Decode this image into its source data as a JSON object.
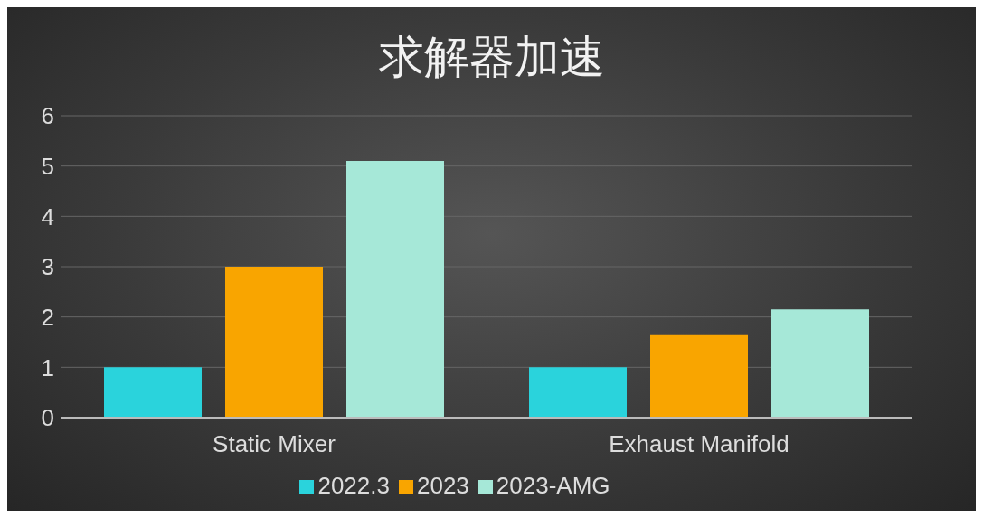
{
  "chart_data": {
    "type": "bar",
    "title": "求解器加速",
    "categories": [
      "Static Mixer",
      "Exhaust Manifold"
    ],
    "series": [
      {
        "name": "2022.3",
        "color": "#2ad3dc",
        "values": [
          1,
          1
        ]
      },
      {
        "name": "2023",
        "color": "#f9a500",
        "values": [
          3,
          1.64
        ]
      },
      {
        "name": "2023-AMG",
        "color": "#a6e8d8",
        "values": [
          5.1,
          2.15
        ]
      }
    ],
    "ylim": [
      0,
      6
    ],
    "yticks": [
      0,
      1,
      2,
      3,
      4,
      5,
      6
    ],
    "grid": "y",
    "legend": "bottom"
  }
}
